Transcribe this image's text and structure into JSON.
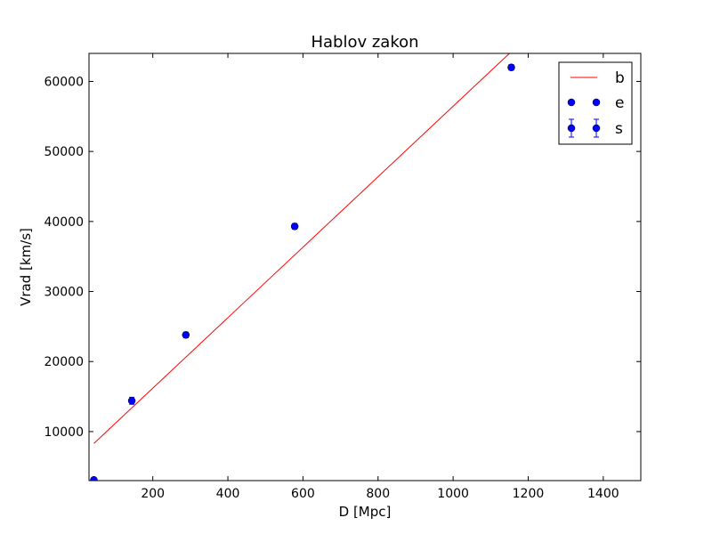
{
  "chart_data": {
    "type": "scatter",
    "title": "Hablov zakon",
    "xlabel": "D [Mpc]",
    "ylabel": "Vrad [km/s]",
    "xlim": [
      30,
      1500
    ],
    "ylim": [
      3000,
      64000
    ],
    "xticks": [
      200,
      400,
      600,
      800,
      1000,
      1200,
      1400
    ],
    "yticks": [
      10000,
      20000,
      30000,
      40000,
      50000,
      60000
    ],
    "grid": false,
    "legend_position": "top-right",
    "legend": [
      "b",
      "e",
      "s"
    ],
    "fit_line": {
      "name": "b",
      "color": "#ff0000",
      "x": [
        43,
        1150
      ],
      "y": [
        8300,
        64000
      ]
    },
    "points": {
      "name": "e",
      "color": "#0000ff",
      "x": [
        43,
        144,
        288,
        578,
        1155
      ],
      "y": [
        3100,
        14400,
        23800,
        39300,
        62000
      ],
      "yerr": [
        300,
        500,
        400,
        400,
        400
      ]
    },
    "errorbars_name": "s"
  }
}
